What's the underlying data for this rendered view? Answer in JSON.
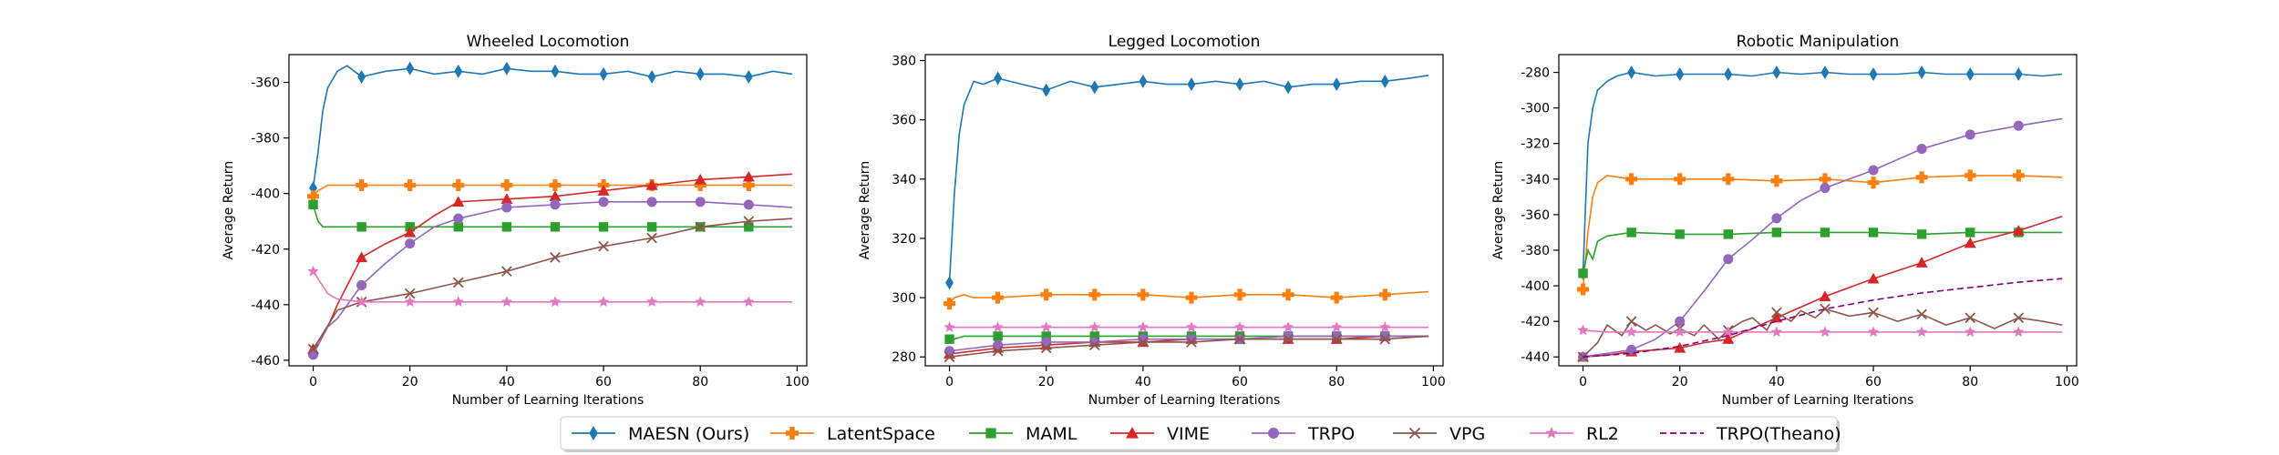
{
  "figure": {
    "legend": {
      "placement": "bottom-center",
      "entries": [
        {
          "name": "MAESN (Ours)",
          "color": "#1f77b4",
          "marker": "diamond",
          "line": "solid"
        },
        {
          "name": "LatentSpace",
          "color": "#ff7f0e",
          "marker": "plus",
          "line": "solid"
        },
        {
          "name": "MAML",
          "color": "#2ca02c",
          "marker": "square",
          "line": "solid"
        },
        {
          "name": "VIME",
          "color": "#d62728",
          "marker": "triangle",
          "line": "solid"
        },
        {
          "name": "TRPO",
          "color": "#9467bd",
          "marker": "circle",
          "line": "solid"
        },
        {
          "name": "VPG",
          "color": "#8c564b",
          "marker": "x",
          "line": "solid"
        },
        {
          "name": "RL2",
          "color": "#e377c2",
          "marker": "star",
          "line": "solid"
        },
        {
          "name": "TRPO(Theano)",
          "color": "#800080",
          "marker": "none",
          "line": "dashed"
        }
      ]
    }
  },
  "chart_data": [
    {
      "type": "line",
      "title": "Wheeled Locomotion",
      "xlabel": "Number of Learning Iterations",
      "ylabel": "Average Return",
      "xlim": [
        -5,
        102
      ],
      "ylim": [
        -462,
        -350
      ],
      "xticks": [
        0,
        20,
        40,
        60,
        80,
        100
      ],
      "yticks": [
        -460,
        -440,
        -420,
        -400,
        -380,
        -360
      ],
      "grid": false,
      "series": [
        {
          "name": "MAESN (Ours)",
          "x": [
            0,
            1,
            2,
            3,
            5,
            7,
            10,
            15,
            20,
            25,
            30,
            35,
            40,
            45,
            50,
            55,
            60,
            65,
            70,
            75,
            80,
            85,
            90,
            95,
            99
          ],
          "y": [
            -398,
            -385,
            -370,
            -362,
            -356,
            -354,
            -358,
            -356,
            -355,
            -357,
            -356,
            -357,
            -355,
            -356,
            -356,
            -357,
            -357,
            -356,
            -358,
            -356,
            -357,
            -357,
            -358,
            -356,
            -357
          ]
        },
        {
          "name": "LatentSpace",
          "x": [
            0,
            1,
            3,
            5,
            10,
            20,
            30,
            40,
            50,
            60,
            70,
            80,
            90,
            99
          ],
          "y": [
            -401,
            -399,
            -397,
            -397,
            -397,
            -397,
            -397,
            -397,
            -397,
            -397,
            -397,
            -397,
            -397,
            -397
          ]
        },
        {
          "name": "MAML",
          "x": [
            0,
            1,
            2,
            3,
            5,
            10,
            20,
            30,
            40,
            50,
            60,
            70,
            80,
            90,
            99
          ],
          "y": [
            -404,
            -410,
            -412,
            -412,
            -412,
            -412,
            -412,
            -412,
            -412,
            -412,
            -412,
            -412,
            -412,
            -412,
            -412
          ]
        },
        {
          "name": "VIME",
          "x": [
            0,
            3,
            5,
            10,
            15,
            20,
            25,
            30,
            40,
            50,
            60,
            70,
            80,
            90,
            99
          ],
          "y": [
            -456,
            -448,
            -440,
            -423,
            -418,
            -414,
            -408,
            -403,
            -402,
            -401,
            -399,
            -397,
            -395,
            -394,
            -393
          ]
        },
        {
          "name": "TRPO",
          "x": [
            0,
            3,
            5,
            10,
            15,
            20,
            25,
            30,
            40,
            50,
            60,
            70,
            80,
            90,
            99
          ],
          "y": [
            -458,
            -448,
            -445,
            -433,
            -425,
            -418,
            -412,
            -409,
            -405,
            -404,
            -403,
            -403,
            -403,
            -404,
            -405
          ]
        },
        {
          "name": "VPG",
          "x": [
            0,
            5,
            10,
            20,
            30,
            40,
            50,
            60,
            70,
            80,
            90,
            99
          ],
          "y": [
            -456,
            -442,
            -439,
            -436,
            -432,
            -428,
            -423,
            -419,
            -416,
            -412,
            -410,
            -409
          ]
        },
        {
          "name": "RL2",
          "x": [
            0,
            3,
            5,
            10,
            20,
            30,
            40,
            50,
            60,
            70,
            80,
            90,
            99
          ],
          "y": [
            -428,
            -436,
            -438,
            -439,
            -439,
            -439,
            -439,
            -439,
            -439,
            -439,
            -439,
            -439,
            -439
          ]
        }
      ]
    },
    {
      "type": "line",
      "title": "Legged Locomotion",
      "xlabel": "Number of Learning Iterations",
      "ylabel": "Average Return",
      "xlim": [
        -5,
        102
      ],
      "ylim": [
        277,
        382
      ],
      "xticks": [
        0,
        20,
        40,
        60,
        80,
        100
      ],
      "yticks": [
        280,
        300,
        320,
        340,
        360,
        380
      ],
      "grid": false,
      "series": [
        {
          "name": "MAESN (Ours)",
          "x": [
            0,
            1,
            2,
            3,
            5,
            7,
            10,
            15,
            20,
            25,
            30,
            35,
            40,
            45,
            50,
            55,
            60,
            65,
            70,
            75,
            80,
            85,
            90,
            95,
            99
          ],
          "y": [
            305,
            335,
            355,
            365,
            373,
            372,
            374,
            372,
            370,
            373,
            371,
            372,
            373,
            372,
            372,
            373,
            372,
            373,
            371,
            372,
            372,
            373,
            373,
            374,
            375
          ]
        },
        {
          "name": "LatentSpace",
          "x": [
            0,
            1,
            3,
            5,
            10,
            20,
            30,
            40,
            50,
            60,
            70,
            80,
            90,
            99
          ],
          "y": [
            298,
            300,
            301,
            300,
            300,
            301,
            301,
            301,
            300,
            301,
            301,
            300,
            301,
            302
          ]
        },
        {
          "name": "MAML",
          "x": [
            0,
            1,
            3,
            5,
            10,
            20,
            30,
            40,
            50,
            60,
            70,
            80,
            90,
            99
          ],
          "y": [
            286,
            286,
            287,
            287,
            287,
            287,
            287,
            287,
            287,
            287,
            287,
            287,
            287,
            287
          ]
        },
        {
          "name": "VIME",
          "x": [
            0,
            5,
            10,
            20,
            30,
            40,
            50,
            60,
            70,
            80,
            90,
            99
          ],
          "y": [
            281,
            282,
            283,
            284,
            285,
            285,
            286,
            286,
            286,
            286,
            287,
            287
          ]
        },
        {
          "name": "TRPO",
          "x": [
            0,
            5,
            10,
            20,
            30,
            40,
            50,
            60,
            70,
            80,
            90,
            99
          ],
          "y": [
            282,
            283,
            284,
            285,
            285,
            286,
            286,
            286,
            287,
            287,
            287,
            287
          ]
        },
        {
          "name": "VPG",
          "x": [
            0,
            5,
            10,
            20,
            30,
            40,
            50,
            60,
            70,
            80,
            90,
            99
          ],
          "y": [
            280,
            281,
            282,
            283,
            284,
            285,
            285,
            286,
            286,
            286,
            286,
            287
          ]
        },
        {
          "name": "RL2",
          "x": [
            0,
            5,
            10,
            20,
            30,
            40,
            50,
            60,
            70,
            80,
            90,
            99
          ],
          "y": [
            290,
            290,
            290,
            290,
            290,
            290,
            290,
            290,
            290,
            290,
            290,
            290
          ]
        }
      ]
    },
    {
      "type": "line",
      "title": "Robotic Manipulation",
      "xlabel": "Number of Learning Iterations",
      "ylabel": "Average Return",
      "xlim": [
        -5,
        102
      ],
      "ylim": [
        -445,
        -270
      ],
      "xticks": [
        0,
        20,
        40,
        60,
        80,
        100
      ],
      "yticks": [
        -440,
        -420,
        -400,
        -380,
        -360,
        -340,
        -320,
        -300,
        -280
      ],
      "grid": false,
      "series": [
        {
          "name": "MAESN (Ours)",
          "x": [
            0,
            1,
            2,
            3,
            5,
            7,
            10,
            15,
            20,
            25,
            30,
            35,
            40,
            45,
            50,
            55,
            60,
            65,
            70,
            75,
            80,
            85,
            90,
            95,
            99
          ],
          "y": [
            -393,
            -320,
            -300,
            -290,
            -285,
            -282,
            -280,
            -282,
            -281,
            -281,
            -281,
            -282,
            -280,
            -281,
            -280,
            -281,
            -281,
            -281,
            -280,
            -281,
            -281,
            -281,
            -281,
            -282,
            -281
          ]
        },
        {
          "name": "LatentSpace",
          "x": [
            0,
            1,
            2,
            3,
            5,
            10,
            15,
            20,
            30,
            40,
            50,
            60,
            70,
            80,
            90,
            99
          ],
          "y": [
            -402,
            -370,
            -350,
            -342,
            -338,
            -340,
            -340,
            -340,
            -340,
            -341,
            -340,
            -342,
            -339,
            -338,
            -338,
            -339
          ]
        },
        {
          "name": "MAML",
          "x": [
            0,
            1,
            2,
            3,
            5,
            10,
            20,
            30,
            40,
            50,
            60,
            70,
            80,
            90,
            99
          ],
          "y": [
            -393,
            -380,
            -385,
            -375,
            -372,
            -370,
            -371,
            -371,
            -370,
            -370,
            -370,
            -371,
            -370,
            -370,
            -370
          ]
        },
        {
          "name": "VIME",
          "x": [
            0,
            5,
            10,
            15,
            20,
            25,
            30,
            35,
            40,
            45,
            50,
            60,
            70,
            80,
            90,
            99
          ],
          "y": [
            -440,
            -439,
            -437,
            -436,
            -435,
            -432,
            -430,
            -424,
            -418,
            -412,
            -406,
            -396,
            -387,
            -376,
            -369,
            -361
          ]
        },
        {
          "name": "TRPO",
          "x": [
            0,
            5,
            10,
            15,
            20,
            25,
            30,
            35,
            40,
            45,
            50,
            60,
            70,
            80,
            90,
            99
          ],
          "y": [
            -440,
            -438,
            -436,
            -430,
            -420,
            -403,
            -385,
            -374,
            -362,
            -352,
            -345,
            -335,
            -323,
            -315,
            -310,
            -306
          ]
        },
        {
          "name": "VPG",
          "x": [
            0,
            3,
            5,
            8,
            10,
            13,
            15,
            18,
            20,
            23,
            25,
            28,
            30,
            33,
            35,
            38,
            40,
            43,
            45,
            48,
            50,
            55,
            60,
            65,
            70,
            75,
            80,
            85,
            90,
            95,
            99
          ],
          "y": [
            -440,
            -432,
            -422,
            -428,
            -420,
            -425,
            -422,
            -427,
            -424,
            -428,
            -422,
            -430,
            -425,
            -420,
            -418,
            -425,
            -415,
            -420,
            -414,
            -418,
            -413,
            -417,
            -415,
            -420,
            -416,
            -422,
            -418,
            -424,
            -418,
            -420,
            -422
          ]
        },
        {
          "name": "RL2",
          "x": [
            0,
            5,
            10,
            20,
            30,
            40,
            50,
            60,
            70,
            80,
            90,
            99
          ],
          "y": [
            -425,
            -426,
            -426,
            -426,
            -426,
            -426,
            -426,
            -426,
            -426,
            -426,
            -426,
            -426
          ]
        },
        {
          "name": "TRPO(Theano)",
          "x": [
            0,
            10,
            20,
            30,
            40,
            50,
            60,
            70,
            80,
            90,
            99
          ],
          "y": [
            -440,
            -438,
            -434,
            -428,
            -420,
            -413,
            -408,
            -404,
            -401,
            -398,
            -396
          ]
        }
      ]
    }
  ]
}
